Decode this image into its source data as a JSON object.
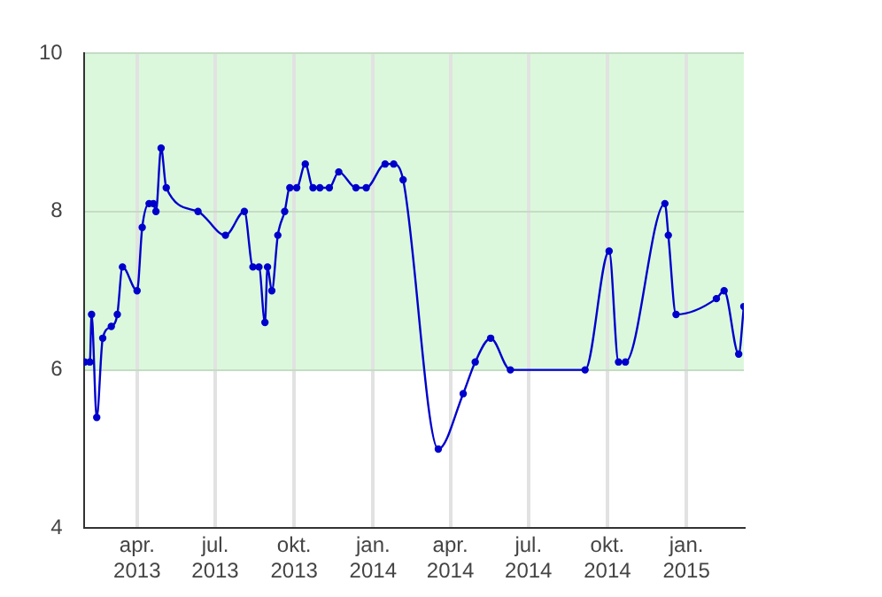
{
  "chart_data": {
    "type": "line",
    "x": [
      "2013-01-30",
      "2013-02-05",
      "2013-02-07",
      "2013-02-13",
      "2013-02-20",
      "2013-03-02",
      "2013-03-09",
      "2013-03-15",
      "2013-04-01",
      "2013-04-07",
      "2013-04-15",
      "2013-04-20",
      "2013-04-23",
      "2013-04-29",
      "2013-05-05",
      "2013-06-11",
      "2013-07-13",
      "2013-08-04",
      "2013-08-14",
      "2013-08-21",
      "2013-08-28",
      "2013-08-31",
      "2013-09-05",
      "2013-09-12",
      "2013-09-20",
      "2013-09-26",
      "2013-10-04",
      "2013-10-14",
      "2013-10-23",
      "2013-10-31",
      "2013-11-11",
      "2013-11-22",
      "2013-12-12",
      "2013-12-24",
      "2014-01-15",
      "2014-01-25",
      "2014-02-05",
      "2014-03-18",
      "2014-04-16",
      "2014-04-30",
      "2014-05-18",
      "2014-06-10",
      "2014-09-05",
      "2014-10-03",
      "2014-10-14",
      "2014-10-22",
      "2014-12-07",
      "2014-12-11",
      "2014-12-20",
      "2015-02-05",
      "2015-02-14",
      "2015-03-03",
      "2015-03-09"
    ],
    "series": [
      {
        "color": "#0000cc",
        "values": [
          6.1,
          6.1,
          6.7,
          5.4,
          6.4,
          6.55,
          6.7,
          7.3,
          7.0,
          7.8,
          8.1,
          8.1,
          8.0,
          8.8,
          8.3,
          8.0,
          7.7,
          8.0,
          7.3,
          7.3,
          6.6,
          7.3,
          7.0,
          7.7,
          8.0,
          8.3,
          8.3,
          8.6,
          8.3,
          8.3,
          8.3,
          8.5,
          8.3,
          8.3,
          8.6,
          8.6,
          8.4,
          5.0,
          5.7,
          6.1,
          6.4,
          6.0,
          6.0,
          7.5,
          6.1,
          6.1,
          8.1,
          7.7,
          6.7,
          6.9,
          7.0,
          6.2,
          6.8
        ]
      }
    ],
    "xlim": [
      "2013-01-29",
      "2015-03-09"
    ],
    "xticks": [
      {
        "value": "2013-04-01",
        "label": "apr. 2013"
      },
      {
        "value": "2013-07-01",
        "label": "jul. 2013"
      },
      {
        "value": "2013-10-01",
        "label": "okt. 2013"
      },
      {
        "value": "2014-01-01",
        "label": "jan. 2014"
      },
      {
        "value": "2014-04-01",
        "label": "apr. 2014"
      },
      {
        "value": "2014-07-01",
        "label": "jul. 2014"
      },
      {
        "value": "2014-10-01",
        "label": "okt. 2014"
      },
      {
        "value": "2015-01-01",
        "label": "jan. 2015"
      }
    ],
    "ylim": [
      4,
      10
    ],
    "yticks": [
      4,
      6,
      8,
      10
    ],
    "bands": [
      {
        "axis": "y",
        "from": 6,
        "to": 10,
        "color": "#dcf8dc"
      }
    ],
    "grid": true,
    "legend": false,
    "marker": "circle",
    "line_style": "solid"
  }
}
